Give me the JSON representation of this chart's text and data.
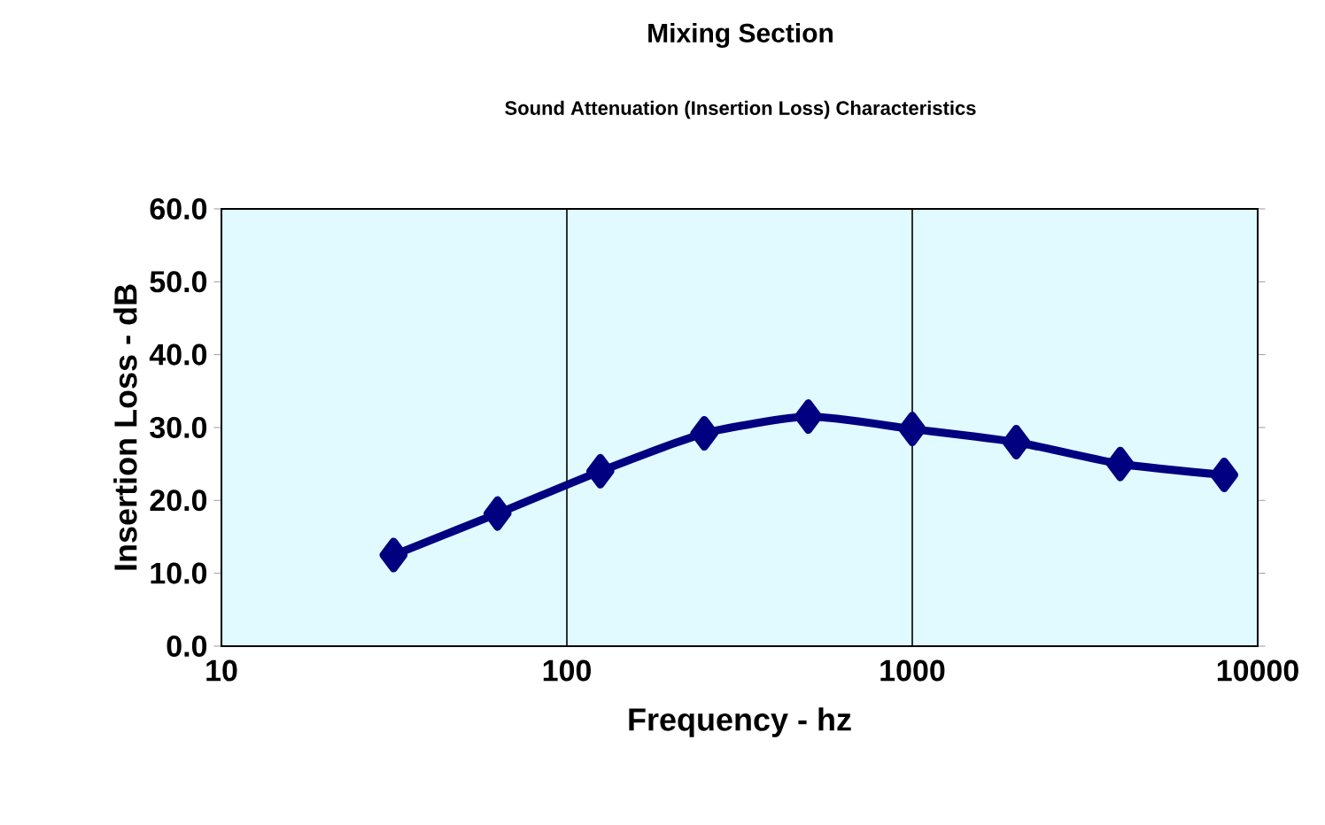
{
  "chart_data": {
    "type": "line",
    "title": "Mixing Section",
    "subtitle": "Sound Attenuation (Insertion Loss) Characteristics",
    "xlabel": "Frequency - hz",
    "ylabel": "Insertion Loss - dB",
    "x": [
      31.5,
      63,
      125,
      250,
      500,
      1000,
      2000,
      4000,
      8000
    ],
    "values": [
      12.5,
      18.2,
      24,
      29.2,
      31.5,
      29.8,
      28,
      25,
      23.5
    ],
    "color": "#000080",
    "marker": "diamond",
    "log": "x",
    "grid": "x",
    "xlim": [
      10,
      10000
    ],
    "xticks": [
      10,
      100,
      1000,
      10000
    ],
    "ylim": [
      0,
      60
    ],
    "yticks": [
      {
        "value": 0,
        "label": "0.0"
      },
      {
        "value": 10,
        "label": "10.0"
      },
      {
        "value": 20,
        "label": "20.0"
      },
      {
        "value": 30,
        "label": "30.0"
      },
      {
        "value": 40,
        "label": "40.0"
      },
      {
        "value": 50,
        "label": "50.0"
      },
      {
        "value": 60,
        "label": "60.0"
      }
    ]
  }
}
